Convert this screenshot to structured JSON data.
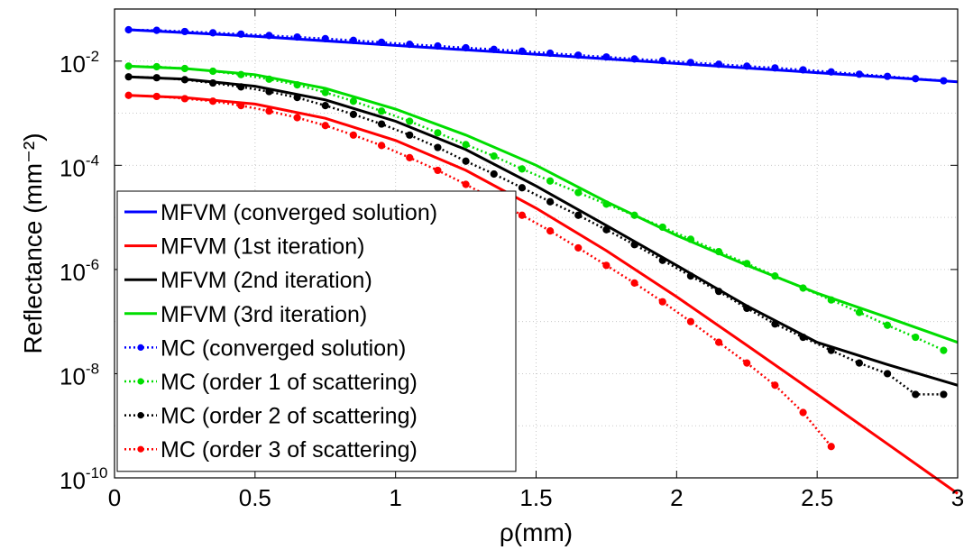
{
  "chart_data": {
    "type": "line",
    "title": "",
    "xlabel": "ρ(mm)",
    "ylabel": "Reflectance (mm⁻²)",
    "xlim": [
      0,
      3
    ],
    "ylim": [
      1e-10,
      0.1
    ],
    "yscale": "log",
    "grid": true,
    "legend_position": "lower-left",
    "x_ticks": [
      "0",
      "0.5",
      "1",
      "1.5",
      "2",
      "2.5",
      "3"
    ],
    "y_ticks": [
      {
        "base": "10",
        "exp": "-10",
        "value": 1e-10
      },
      {
        "base": "10",
        "exp": "-8",
        "value": 1e-08
      },
      {
        "base": "10",
        "exp": "-6",
        "value": 1e-06
      },
      {
        "base": "10",
        "exp": "-4",
        "value": 0.0001
      },
      {
        "base": "10",
        "exp": "-2",
        "value": 0.01
      }
    ],
    "series": [
      {
        "name": "MFVM (converged solution)",
        "style": "solid",
        "color": "#0000ff",
        "x": [
          0.05,
          0.5,
          1.0,
          1.5,
          2.0,
          2.5,
          3.0
        ],
        "y": [
          0.04,
          0.03,
          0.02,
          0.0135,
          0.009,
          0.006,
          0.004
        ]
      },
      {
        "name": "MFVM (1st iteration)",
        "style": "solid",
        "color": "#ff0000",
        "x": [
          0.05,
          0.25,
          0.5,
          0.75,
          1.0,
          1.25,
          1.5,
          1.75,
          2.0,
          2.25,
          2.5,
          2.75,
          3.0
        ],
        "y": [
          0.0022,
          0.002,
          0.0015,
          0.0008,
          0.0003,
          8e-05,
          1.5e-05,
          2.3e-06,
          3e-07,
          3.5e-08,
          4e-09,
          4.5e-10,
          5e-11
        ]
      },
      {
        "name": "MFVM (2nd iteration)",
        "style": "solid",
        "color": "#000000",
        "x": [
          0.05,
          0.25,
          0.5,
          0.75,
          1.0,
          1.25,
          1.5,
          1.75,
          2.0,
          2.25,
          2.5,
          2.75,
          3.0
        ],
        "y": [
          0.005,
          0.0045,
          0.0033,
          0.0018,
          0.0007,
          0.0002,
          4e-05,
          7e-06,
          1.2e-06,
          2e-07,
          4e-08,
          1.5e-08,
          6e-09
        ]
      },
      {
        "name": "MFVM (3rd iteration)",
        "style": "solid",
        "color": "#00dd00",
        "x": [
          0.05,
          0.25,
          0.5,
          0.75,
          1.0,
          1.25,
          1.5,
          1.75,
          2.0,
          2.25,
          2.5,
          2.75,
          3.0
        ],
        "y": [
          0.008,
          0.0072,
          0.0055,
          0.003,
          0.0012,
          0.00038,
          0.0001,
          2e-05,
          4.5e-06,
          1.2e-06,
          3.5e-07,
          1.2e-07,
          4e-08
        ]
      },
      {
        "name": "MC (converged solution)",
        "style": "dotted",
        "color": "#0000ff",
        "x": [
          0.05,
          0.15,
          0.25,
          0.35,
          0.45,
          0.55,
          0.65,
          0.75,
          0.85,
          0.95,
          1.05,
          1.15,
          1.25,
          1.35,
          1.45,
          1.55,
          1.65,
          1.75,
          1.85,
          1.95,
          2.05,
          2.15,
          2.25,
          2.35,
          2.45,
          2.55,
          2.65,
          2.75,
          2.85,
          2.95
        ],
        "y": [
          0.04,
          0.039,
          0.037,
          0.035,
          0.033,
          0.031,
          0.029,
          0.027,
          0.025,
          0.023,
          0.021,
          0.0195,
          0.018,
          0.0168,
          0.0155,
          0.0142,
          0.013,
          0.012,
          0.011,
          0.0102,
          0.0094,
          0.0087,
          0.008,
          0.0074,
          0.0068,
          0.0062,
          0.0056,
          0.0051,
          0.0046,
          0.0042
        ]
      },
      {
        "name": "MC (order 1 of scattering)",
        "style": "dotted",
        "color": "#00dd00",
        "x": [
          0.05,
          0.15,
          0.25,
          0.35,
          0.45,
          0.55,
          0.65,
          0.75,
          0.85,
          0.95,
          1.05,
          1.15,
          1.25,
          1.35,
          1.45,
          1.55,
          1.65,
          1.75,
          1.85,
          1.95,
          2.05,
          2.15,
          2.25,
          2.35,
          2.45,
          2.55,
          2.65,
          2.75,
          2.85,
          2.95
        ],
        "y": [
          0.008,
          0.0078,
          0.0072,
          0.0064,
          0.0055,
          0.0045,
          0.0035,
          0.0025,
          0.0017,
          0.0011,
          0.0007,
          0.00042,
          0.00025,
          0.00015,
          8.5e-05,
          5e-05,
          3e-05,
          1.8e-05,
          1.1e-05,
          6.5e-06,
          3.8e-06,
          2.2e-06,
          1.3e-06,
          7.5e-07,
          4.4e-07,
          2.6e-07,
          1.5e-07,
          8.5e-08,
          5e-08,
          2.8e-08
        ]
      },
      {
        "name": "MC (order 2 of scattering)",
        "style": "dotted",
        "color": "#000000",
        "x": [
          0.05,
          0.15,
          0.25,
          0.35,
          0.45,
          0.55,
          0.65,
          0.75,
          0.85,
          0.95,
          1.05,
          1.15,
          1.25,
          1.35,
          1.45,
          1.55,
          1.65,
          1.75,
          1.85,
          1.95,
          2.05,
          2.15,
          2.25,
          2.35,
          2.45,
          2.55,
          2.65,
          2.75,
          2.85,
          2.95
        ],
        "y": [
          0.005,
          0.0048,
          0.0044,
          0.0038,
          0.0032,
          0.0026,
          0.002,
          0.0014,
          0.00095,
          0.00062,
          0.00038,
          0.00022,
          0.00012,
          6.8e-05,
          3.7e-05,
          2e-05,
          1.1e-05,
          5.8e-06,
          3e-06,
          1.5e-06,
          7.5e-07,
          3.8e-07,
          1.8e-07,
          9e-08,
          5e-08,
          2.8e-08,
          1.6e-08,
          1e-08,
          4e-09,
          4e-09
        ]
      },
      {
        "name": "MC (order 3 of scattering)",
        "style": "dotted",
        "color": "#ff0000",
        "x": [
          0.05,
          0.15,
          0.25,
          0.35,
          0.45,
          0.55,
          0.65,
          0.75,
          0.85,
          0.95,
          1.05,
          1.15,
          1.25,
          1.35,
          1.45,
          1.55,
          1.65,
          1.75,
          1.85,
          1.95,
          2.05,
          2.15,
          2.25,
          2.35,
          2.45,
          2.55
        ],
        "y": [
          0.0022,
          0.0021,
          0.0019,
          0.0017,
          0.0014,
          0.0011,
          0.00082,
          0.00058,
          0.00038,
          0.00024,
          0.00014,
          8e-05,
          4.3e-05,
          2.2e-05,
          1.1e-05,
          5.5e-06,
          2.6e-06,
          1.2e-06,
          5.5e-07,
          2.4e-07,
          1e-07,
          4e-08,
          1.6e-08,
          6e-09,
          1.8e-09,
          4e-10
        ]
      }
    ]
  }
}
